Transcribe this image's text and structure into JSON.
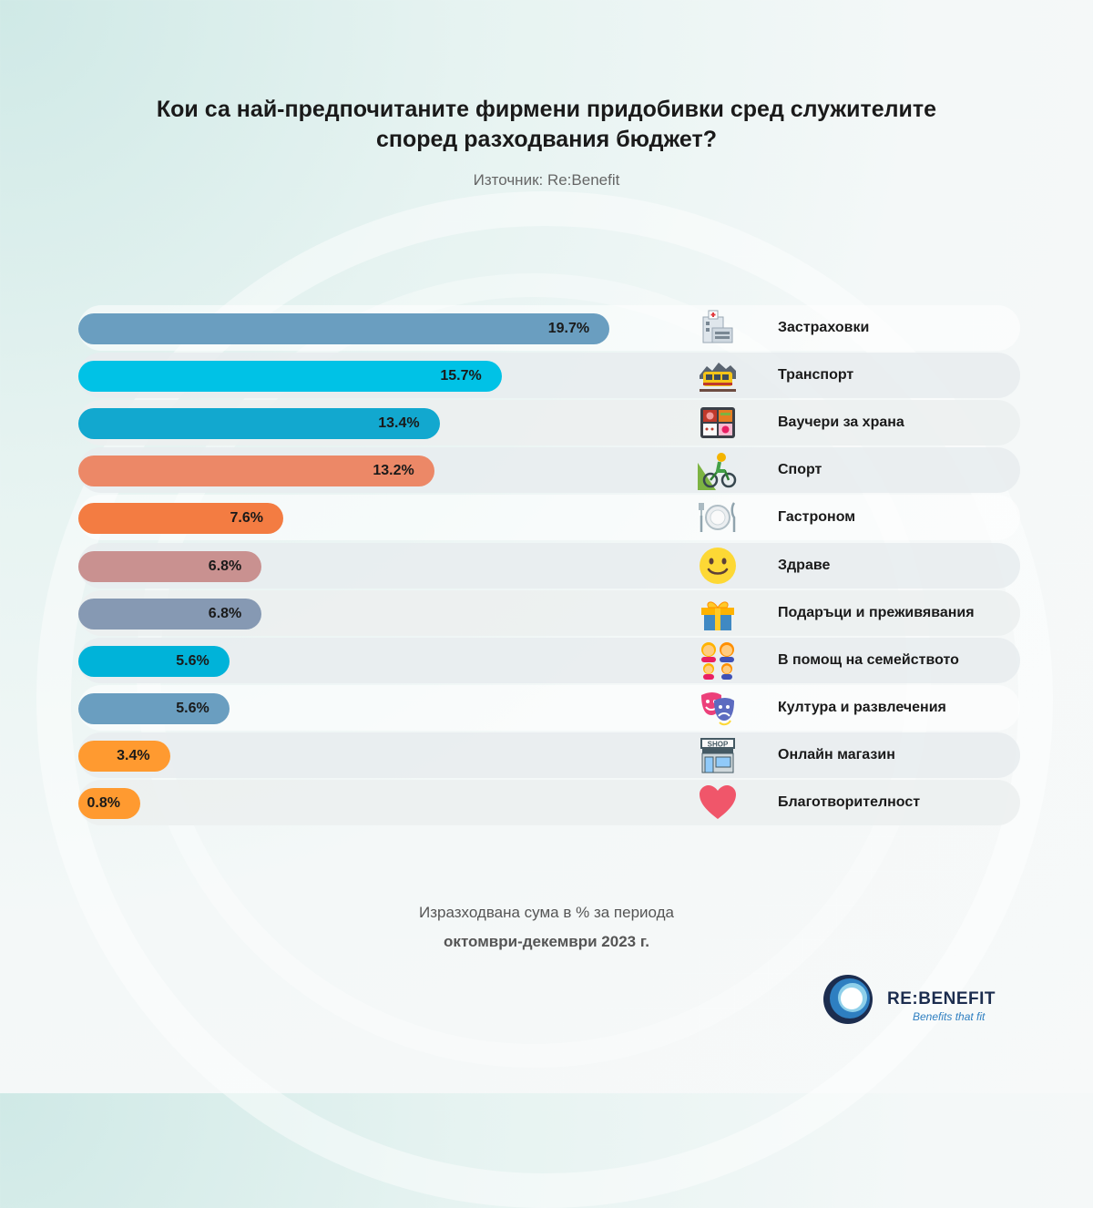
{
  "title_line1": "Кои са най-предпочитаните фирмени придобивки сред служителите",
  "title_line2": "според разходвания бюджет?",
  "source": "Източник: Re:Benefit",
  "footnote_line1": "Изразходвана сума в % за периода",
  "footnote_line2": "октомври-декември 2023 г.",
  "brand": {
    "name": "RE:BENEFIT",
    "tagline": "Benefits that fit",
    "color": "#1c2d4f",
    "accent": "#2e7fc1"
  },
  "chart_data": {
    "type": "bar",
    "orientation": "horizontal",
    "title": "Кои са най-предпочитаните фирмени придобивки сред служителите според разходвания бюджет?",
    "xlim": [
      0,
      25
    ],
    "grid": false,
    "categories": [
      "Застраховки",
      "Транспорт",
      "Ваучери за храна",
      "Спорт",
      "Гастроном",
      "Здраве",
      "Подаръци и преживявания",
      "В помощ на семейството",
      "Култура и развлечения",
      "Онлайн магазин",
      "Благотворителност"
    ],
    "values": [
      19.7,
      15.7,
      13.4,
      13.2,
      7.6,
      6.8,
      6.8,
      5.6,
      5.6,
      3.4,
      0.8
    ],
    "labels": [
      "19.7%",
      "15.7%",
      "13.4%",
      "13.2%",
      "7.6%",
      "6.8%",
      "6.8%",
      "5.6%",
      "5.6%",
      "3.4%",
      "0.8%"
    ],
    "colors": [
      "#6a9ec0",
      "#00c2e6",
      "#12a8cf",
      "#ec8867",
      "#f37c42",
      "#c99190",
      "#8699b3",
      "#00b3d9",
      "#6a9ec0",
      "#ff9a30",
      "#ff9a30"
    ],
    "icons": [
      "hospital-icon",
      "train-icon",
      "food-voucher-icon",
      "cyclist-icon",
      "plate-icon",
      "smiley-icon",
      "gift-icon",
      "family-icon",
      "theater-masks-icon",
      "shop-icon",
      "heart-icon"
    ]
  }
}
